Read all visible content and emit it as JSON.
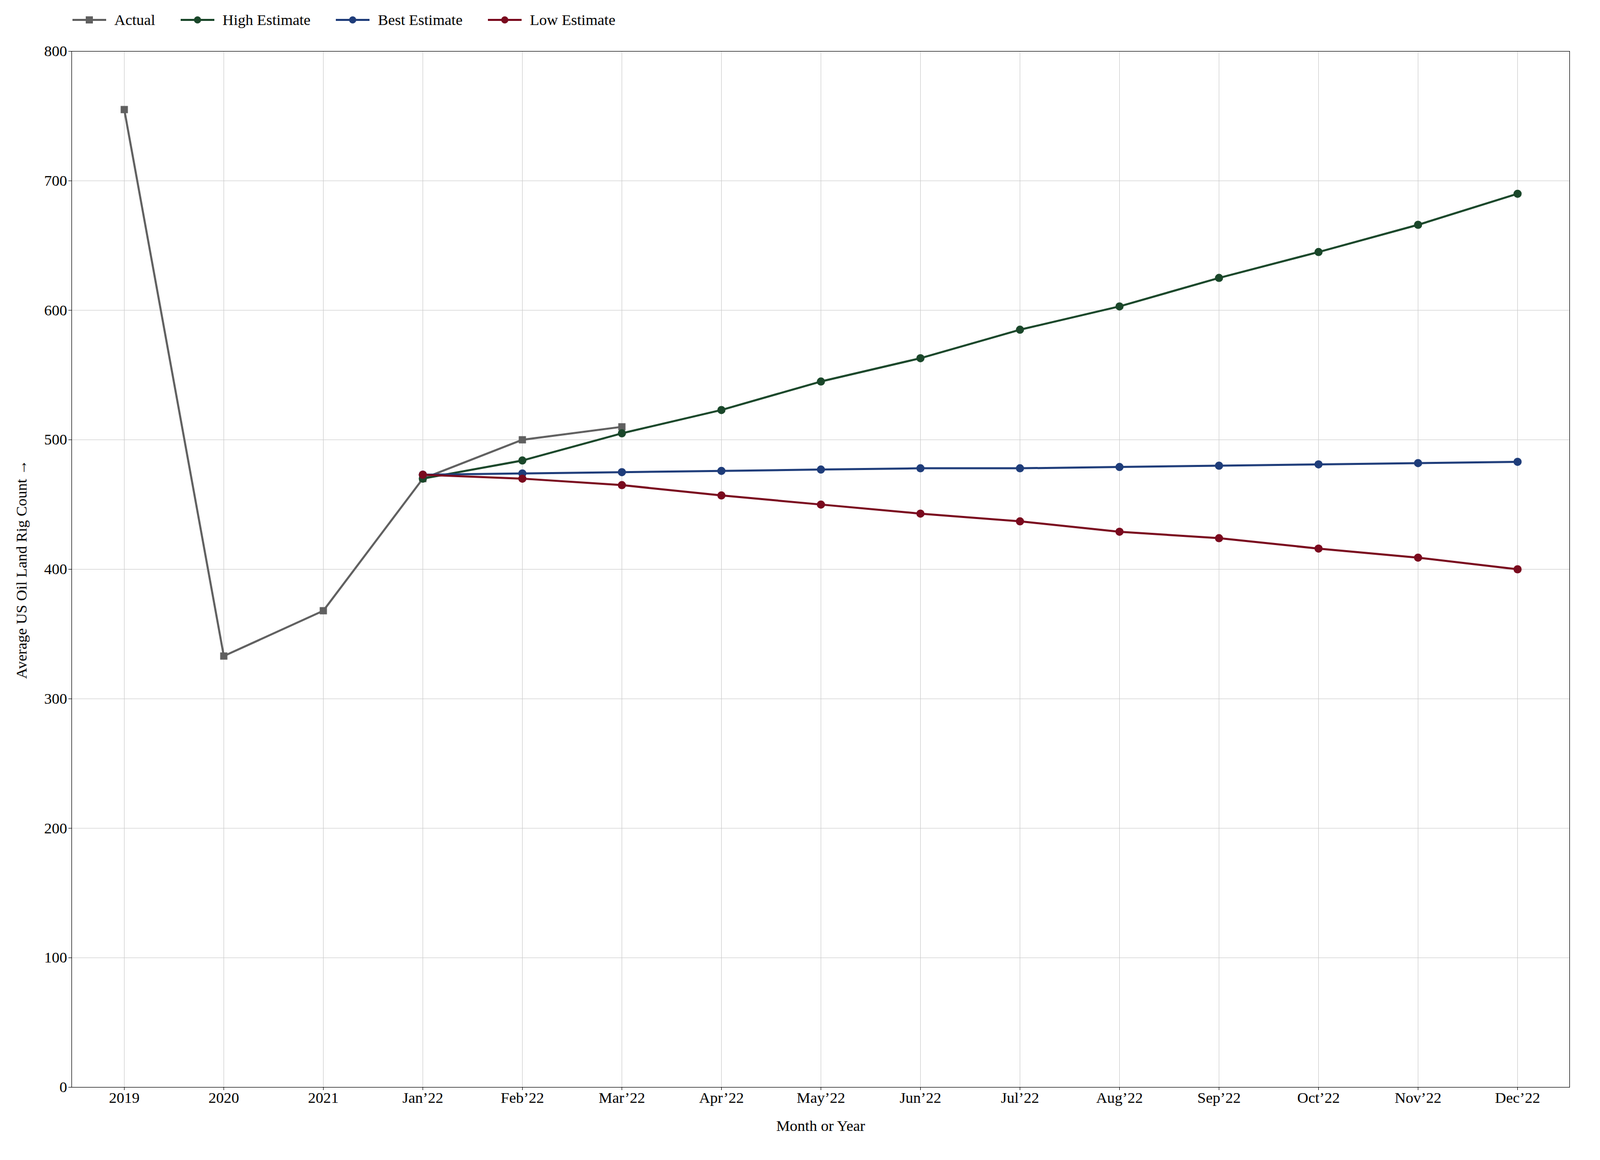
{
  "chart_data": {
    "type": "line",
    "xlabel": "Month or Year",
    "ylabel": "Average US Oil Land Rig Count",
    "categories": [
      "2019",
      "2020",
      "2021",
      "Jan’22",
      "Feb’22",
      "Mar’22",
      "Apr’22",
      "May’22",
      "Jun’22",
      "Jul’22",
      "Aug’22",
      "Sep’22",
      "Oct’22",
      "Nov’22",
      "Dec’22"
    ],
    "series": [
      {
        "name": "Actual",
        "color": "#606060",
        "marker": "square",
        "values": [
          755,
          333,
          368,
          470,
          500,
          510,
          null,
          null,
          null,
          null,
          null,
          null,
          null,
          null,
          null
        ]
      },
      {
        "name": "High Estimate",
        "color": "#1a472a",
        "marker": "circle",
        "values": [
          null,
          null,
          null,
          470,
          484,
          505,
          523,
          545,
          563,
          585,
          603,
          625,
          645,
          666,
          690
        ]
      },
      {
        "name": "Best Estimate",
        "color": "#1f3d7a",
        "marker": "circle",
        "values": [
          null,
          null,
          null,
          473,
          474,
          475,
          476,
          477,
          478,
          478,
          479,
          480,
          481,
          482,
          483
        ]
      },
      {
        "name": "Low Estimate",
        "color": "#7a0a1e",
        "marker": "circle",
        "values": [
          null,
          null,
          null,
          473,
          470,
          465,
          457,
          450,
          443,
          437,
          429,
          424,
          416,
          409,
          400
        ]
      }
    ],
    "ylim": [
      0,
      800
    ],
    "yticks": [
      0,
      100,
      200,
      300,
      400,
      500,
      600,
      700,
      800
    ],
    "grid": true,
    "legend": "upper left"
  }
}
